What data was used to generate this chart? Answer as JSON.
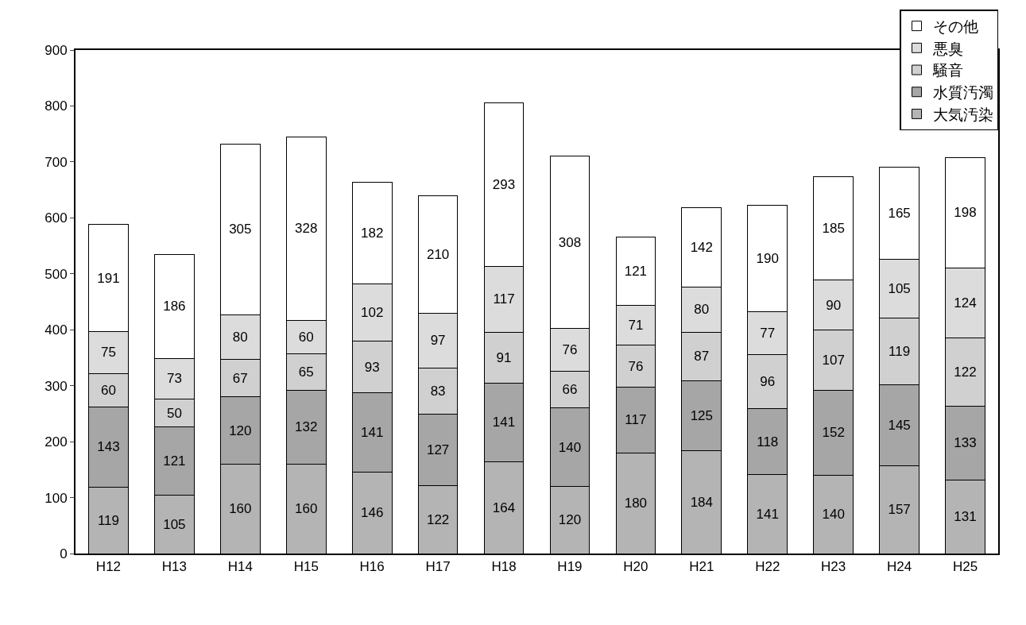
{
  "chart_data": {
    "type": "bar",
    "stacked": true,
    "data_labels": true,
    "grid": false,
    "legend": "top right",
    "categories": [
      "H12",
      "H13",
      "H14",
      "H15",
      "H16",
      "H17",
      "H18",
      "H19",
      "H20",
      "H21",
      "H22",
      "H23",
      "H24",
      "H25"
    ],
    "ylim": [
      0,
      900
    ],
    "yticks": [
      0,
      100,
      200,
      300,
      400,
      500,
      600,
      700,
      800,
      900
    ],
    "series": [
      {
        "name": "大気汚染",
        "color": "#b4b4b4",
        "values": [
          119,
          105,
          160,
          160,
          146,
          122,
          164,
          120,
          180,
          184,
          141,
          140,
          157,
          131
        ]
      },
      {
        "name": "水質汚濁",
        "color": "#a6a6a6",
        "values": [
          143,
          121,
          120,
          132,
          141,
          127,
          141,
          140,
          117,
          125,
          118,
          152,
          145,
          133
        ]
      },
      {
        "name": "騒音",
        "color": "#d0d0d0",
        "values": [
          60,
          50,
          67,
          65,
          93,
          83,
          91,
          66,
          76,
          87,
          96,
          107,
          119,
          122
        ]
      },
      {
        "name": "悪臭",
        "color": "#dcdcdc",
        "values": [
          75,
          73,
          80,
          60,
          102,
          97,
          117,
          76,
          71,
          80,
          77,
          90,
          105,
          124
        ]
      },
      {
        "name": "その他",
        "color": "#ffffff",
        "values": [
          191,
          186,
          305,
          328,
          182,
          210,
          293,
          308,
          121,
          142,
          190,
          185,
          165,
          198
        ]
      }
    ]
  }
}
